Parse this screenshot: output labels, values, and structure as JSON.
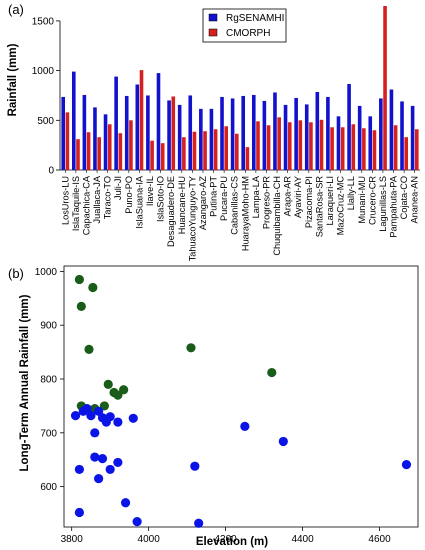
{
  "chart_data": [
    {
      "panel_label": "(a)",
      "type": "bar",
      "ylabel": "Rainfall (mm)",
      "ylim": [
        0,
        1650
      ],
      "yticks": [
        0,
        500,
        1000,
        1500
      ],
      "grid": false,
      "legend_position": "top-center",
      "categories": [
        "LosUros-LU",
        "IslaTaquile-IS",
        "Capachica-CA",
        "Juallaca-JA",
        "Taraco-TO",
        "Juli-JI",
        "Puno-PO",
        "IslaSuana-IA",
        "Ilave-IL",
        "IslaSoto-IO",
        "Desaguadero-DE",
        "Huancane-HU",
        "TahuacoYunguyo-TY",
        "Azangaro-AZ",
        "Putina-PT",
        "Pucara-PU",
        "Cabanillas-CS",
        "HuarayaMoho-HM",
        "Lampa-LA",
        "Progreso-PR",
        "Chuquibambilla-CH",
        "Arapa-AR",
        "Ayaviri-AY",
        "Pizacoma-PI",
        "SantaRosa-SR",
        "Laraqueri-LI",
        "MazoCruz-MC",
        "Llally-LL",
        "Munani-MU",
        "Crucero-CR",
        "Lagunillas-LS",
        "Pampahuta-PA",
        "Cojata-CO",
        "Ananea-AN"
      ],
      "series": [
        {
          "name": "RgSENAMHI",
          "color": "#1212cc",
          "values": [
            735,
            990,
            755,
            630,
            560,
            940,
            745,
            860,
            750,
            975,
            700,
            655,
            750,
            615,
            615,
            735,
            720,
            745,
            755,
            695,
            780,
            655,
            725,
            660,
            785,
            735,
            540,
            865,
            645,
            540,
            720,
            810,
            690,
            645
          ]
        },
        {
          "name": "CMORPH",
          "color": "#d42020",
          "values": [
            580,
            310,
            380,
            330,
            460,
            370,
            500,
            1005,
            295,
            270,
            740,
            330,
            385,
            390,
            410,
            440,
            365,
            230,
            490,
            450,
            530,
            480,
            500,
            480,
            505,
            430,
            430,
            460,
            420,
            400,
            1650,
            450,
            330,
            410
          ]
        }
      ]
    },
    {
      "panel_label": "(b)",
      "type": "scatter",
      "xlabel": "Elevation (m)",
      "ylabel": "Long-Term Annual Rainfall (mm)",
      "xlim": [
        3780,
        4700
      ],
      "ylim": [
        525,
        1010
      ],
      "xticks": [
        3800,
        4000,
        4200,
        4400,
        4600
      ],
      "yticks": [
        600,
        700,
        800,
        900,
        1000
      ],
      "grid": true,
      "series": [
        {
          "name": "",
          "color": "#1a5c1a",
          "points": [
            [
              3820,
              985
            ],
            [
              3855,
              970
            ],
            [
              3825,
              935
            ],
            [
              3845,
              855
            ],
            [
              3895,
              790
            ],
            [
              3910,
              775
            ],
            [
              3935,
              780
            ],
            [
              3920,
              770
            ],
            [
              3825,
              750
            ],
            [
              3885,
              750
            ],
            [
              3860,
              745
            ],
            [
              4110,
              858
            ],
            [
              4320,
              812
            ]
          ]
        },
        {
          "name": "",
          "color": "#0a14e6",
          "points": [
            [
              3810,
              732
            ],
            [
              3830,
              740
            ],
            [
              3850,
              732
            ],
            [
              3840,
              745
            ],
            [
              3870,
              740
            ],
            [
              3880,
              728
            ],
            [
              3900,
              730
            ],
            [
              3860,
              700
            ],
            [
              3890,
              720
            ],
            [
              3920,
              720
            ],
            [
              3960,
              727
            ],
            [
              3820,
              632
            ],
            [
              3860,
              655
            ],
            [
              3870,
              615
            ],
            [
              3880,
              652
            ],
            [
              3900,
              632
            ],
            [
              3920,
              645
            ],
            [
              3940,
              570
            ],
            [
              3820,
              552
            ],
            [
              3970,
              535
            ],
            [
              4250,
              712
            ],
            [
              4350,
              684
            ],
            [
              4120,
              638
            ],
            [
              4130,
              532
            ],
            [
              4670,
              641
            ]
          ]
        }
      ]
    }
  ]
}
